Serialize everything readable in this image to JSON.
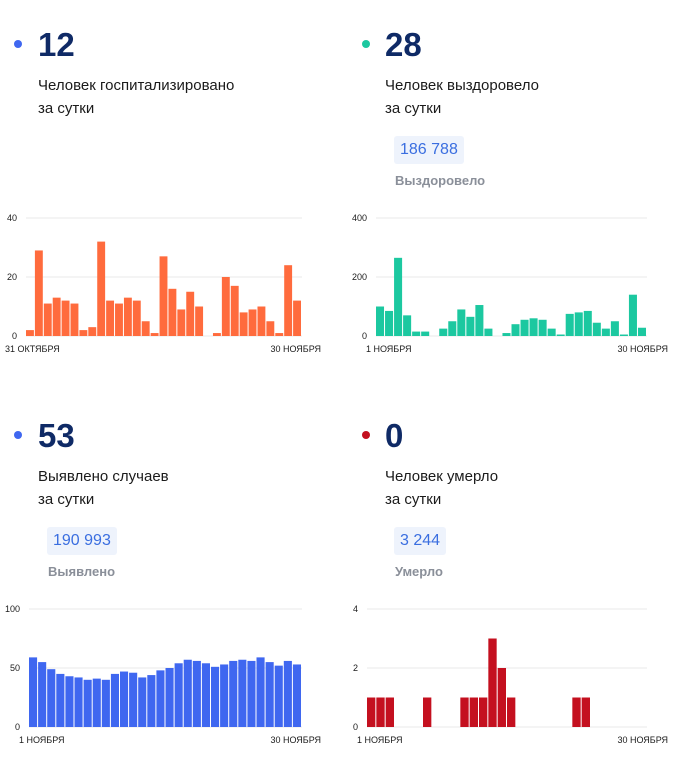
{
  "panels": [
    {
      "id": "hospitalized",
      "count": "12",
      "desc_line1": "Человек госпитализировано",
      "desc_line2": "за сутки",
      "color": "#ff6b3d",
      "total": null,
      "total_label": null
    },
    {
      "id": "recovered",
      "count": "28",
      "desc_line1": "Человек выздоровело",
      "desc_line2": "за сутки",
      "color": "#1cc8a0",
      "total": "186 788",
      "total_label": "Выздоровело"
    },
    {
      "id": "cases",
      "count": "53",
      "desc_line1": "Выявлено случаев",
      "desc_line2": "за сутки",
      "color": "#3f67f0",
      "total": "190 993",
      "total_label": "Выявлено"
    },
    {
      "id": "deaths",
      "count": "0",
      "desc_line1": "Человек умерло",
      "desc_line2": "за сутки",
      "color": "#c4101f",
      "total": "3 244",
      "total_label": "Умерло"
    }
  ],
  "chart_data": [
    {
      "type": "bar",
      "title": "",
      "x_start_label": "31 ОКТЯБРЯ",
      "x_end_label": "30 НОЯБРЯ",
      "yticks": [
        0,
        20,
        40
      ],
      "ylim": [
        0,
        40
      ],
      "color": "#ff6b3d",
      "values": [
        2,
        29,
        11,
        13,
        12,
        11,
        2,
        3,
        32,
        12,
        11,
        13,
        12,
        5,
        1,
        27,
        16,
        9,
        15,
        10,
        0,
        1,
        20,
        17,
        8,
        9,
        10,
        5,
        1,
        24,
        12
      ]
    },
    {
      "type": "bar",
      "title": "",
      "x_start_label": "1 НОЯБРЯ",
      "x_end_label": "30 НОЯБРЯ",
      "yticks": [
        0,
        200,
        400
      ],
      "ylim": [
        0,
        400
      ],
      "color": "#1cc8a0",
      "values": [
        100,
        85,
        265,
        70,
        15,
        15,
        0,
        25,
        50,
        90,
        65,
        105,
        25,
        0,
        10,
        40,
        55,
        60,
        55,
        25,
        5,
        75,
        80,
        85,
        45,
        25,
        50,
        5,
        140,
        28
      ]
    },
    {
      "type": "bar",
      "title": "",
      "x_start_label": "1 НОЯБРЯ",
      "x_end_label": "30 НОЯБРЯ",
      "yticks": [
        0,
        50,
        100
      ],
      "ylim": [
        0,
        100
      ],
      "color": "#3f67f0",
      "values": [
        59,
        55,
        49,
        45,
        43,
        42,
        40,
        41,
        40,
        45,
        47,
        46,
        42,
        44,
        48,
        50,
        54,
        57,
        56,
        54,
        51,
        53,
        56,
        57,
        56,
        59,
        55,
        52,
        56,
        53
      ]
    },
    {
      "type": "bar",
      "title": "",
      "x_start_label": "1 НОЯБРЯ",
      "x_end_label": "30 НОЯБРЯ",
      "yticks": [
        0,
        2,
        4
      ],
      "ylim": [
        0,
        4
      ],
      "color": "#c4101f",
      "values": [
        1,
        1,
        1,
        0,
        0,
        0,
        1,
        0,
        0,
        0,
        1,
        1,
        1,
        3,
        2,
        1,
        0,
        0,
        0,
        0,
        0,
        0,
        1,
        1,
        0,
        0,
        0,
        0,
        0,
        0
      ]
    }
  ]
}
